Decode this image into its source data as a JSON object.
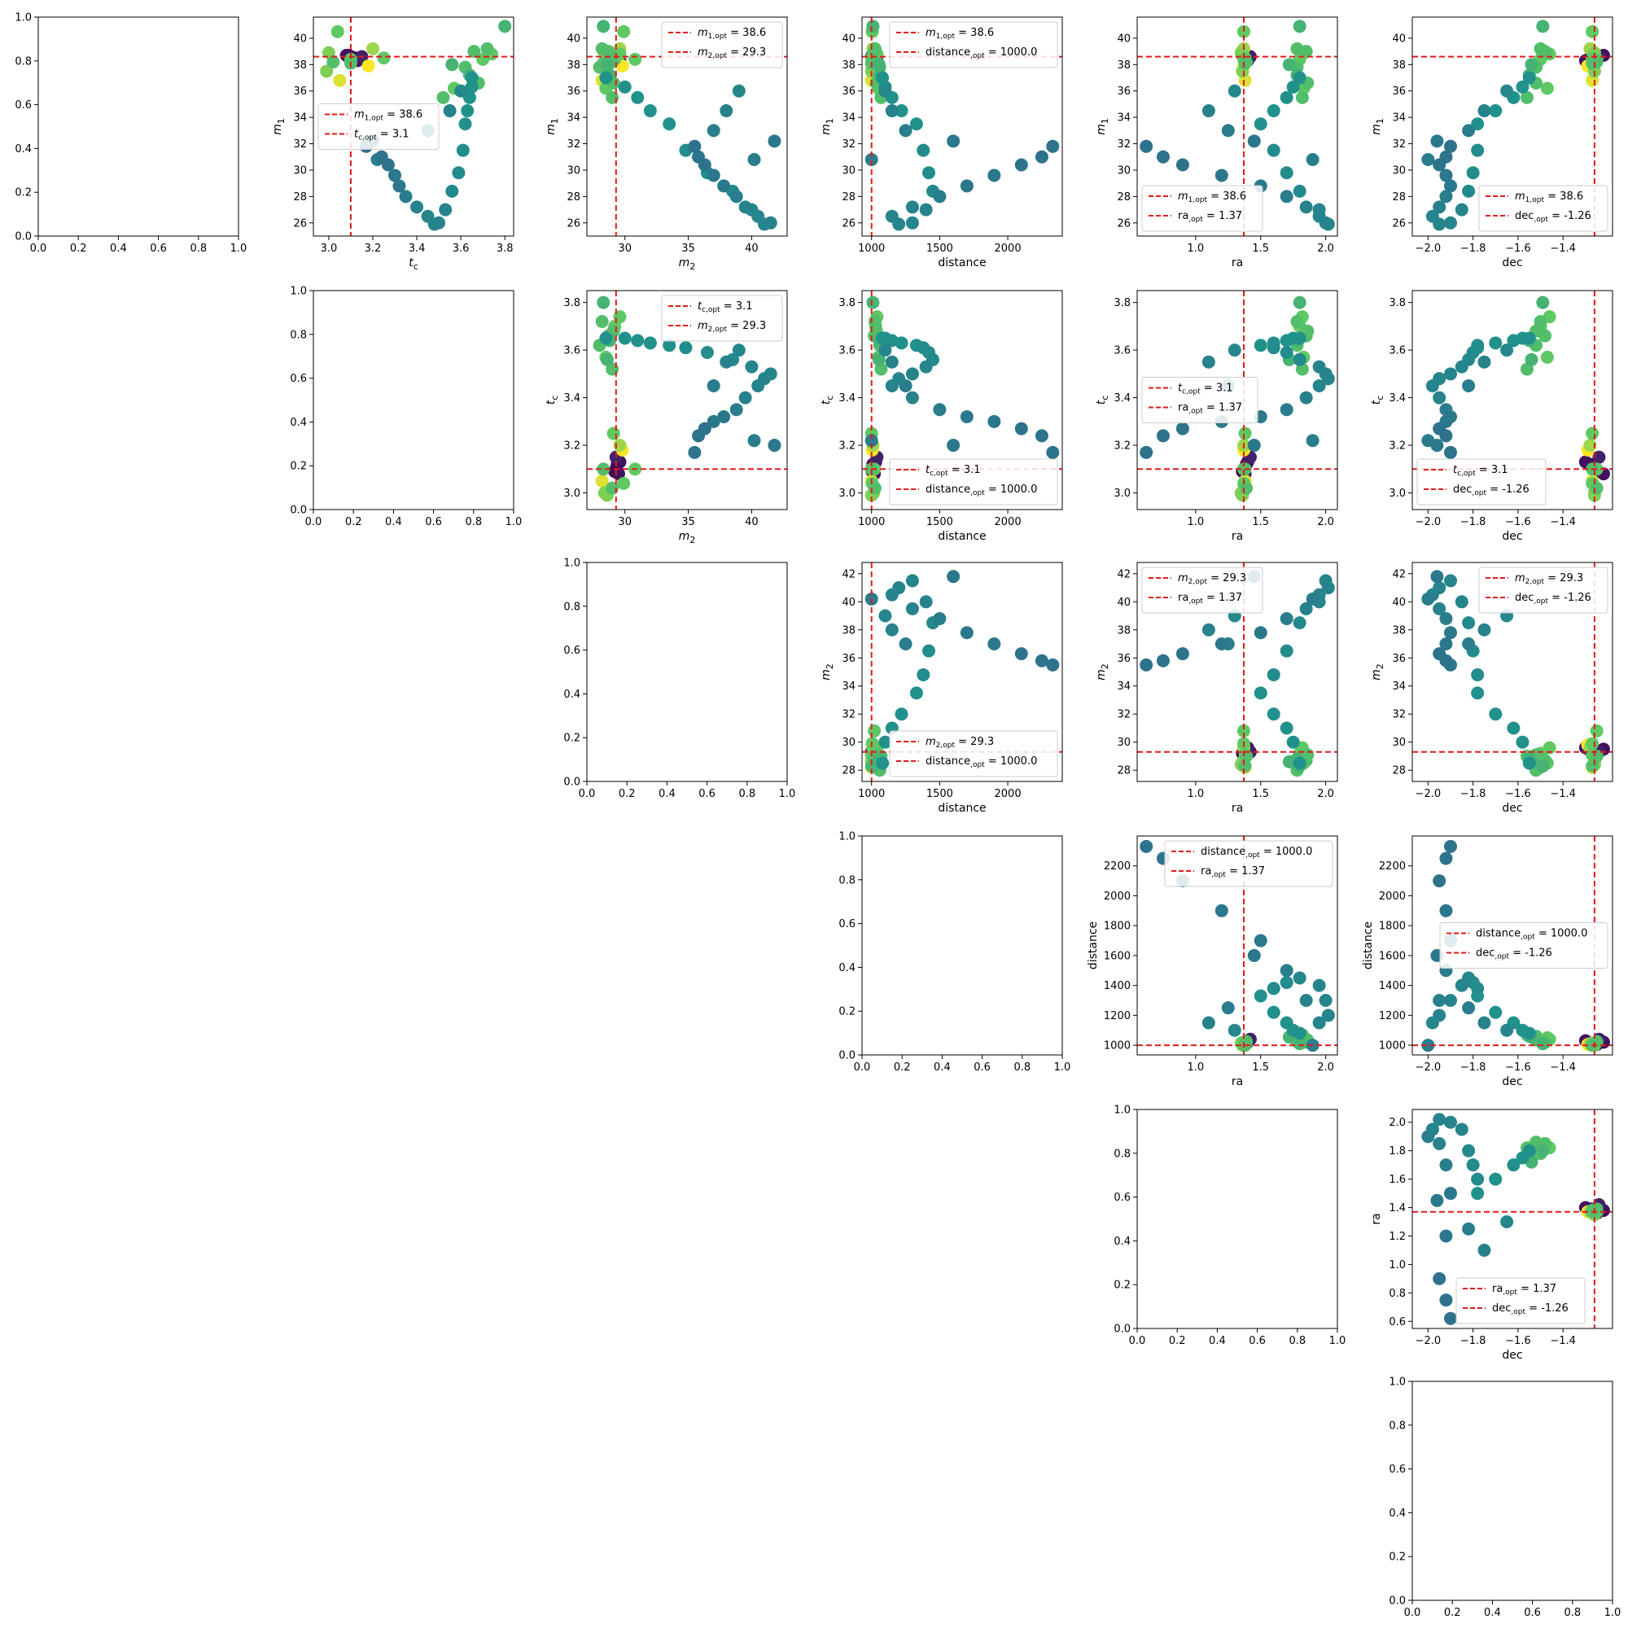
{
  "chart_data": {
    "type": "scatter",
    "parameters": [
      {
        "key": "m1",
        "sym": "m",
        "sub": "1",
        "opt": 38.6,
        "opt_label": "38.6"
      },
      {
        "key": "tc",
        "sym": "t",
        "sub": "c",
        "opt": 3.1,
        "opt_label": "3.1"
      },
      {
        "key": "m2",
        "sym": "m",
        "sub": "2",
        "opt": 29.3,
        "opt_label": "29.3"
      },
      {
        "key": "distance",
        "sym": "distance",
        "sub": "",
        "opt": 1000.0,
        "opt_label": "1000.0"
      },
      {
        "key": "ra",
        "sym": "ra",
        "sub": "",
        "opt": 1.37,
        "opt_label": "1.37"
      },
      {
        "key": "dec",
        "sym": "dec",
        "sub": "",
        "opt": -1.26,
        "opt_label": "-1.26"
      }
    ],
    "opt_subscript": "opt",
    "empty_axis_ticks": [
      "0.0",
      "0.2",
      "0.4",
      "0.6",
      "0.8",
      "1.0"
    ],
    "legend_line_color": "#e31a1c",
    "colormap": [
      "#440154",
      "#3b528b",
      "#21918c",
      "#5ec962",
      "#fde725"
    ],
    "panels": [
      {
        "row": 0,
        "col": 0,
        "type": "empty"
      },
      {
        "row": 0,
        "col": 1,
        "x": "tc",
        "y": "m1",
        "xlim": [
          2.93,
          3.84
        ],
        "ylim": [
          25.0,
          41.6
        ],
        "xticks": [
          3.0,
          3.2,
          3.4,
          3.6,
          3.8
        ],
        "yticks": [
          26,
          28,
          30,
          32,
          34,
          36,
          38,
          40
        ],
        "legend": "center-left"
      },
      {
        "row": 0,
        "col": 2,
        "x": "m2",
        "y": "m1",
        "xlim": [
          27.0,
          42.8
        ],
        "ylim": [
          25.0,
          41.6
        ],
        "xticks": [
          30,
          35,
          40
        ],
        "yticks": [
          26,
          28,
          30,
          32,
          34,
          36,
          38,
          40
        ],
        "legend": "top-right"
      },
      {
        "row": 0,
        "col": 3,
        "x": "distance",
        "y": "m1",
        "xlim": [
          930,
          2400
        ],
        "ylim": [
          25.0,
          41.6
        ],
        "xticks": [
          1000,
          1500,
          2000
        ],
        "yticks": [
          26,
          28,
          30,
          32,
          34,
          36,
          38,
          40
        ],
        "legend": "top-right"
      },
      {
        "row": 0,
        "col": 4,
        "x": "ra",
        "y": "m1",
        "xlim": [
          0.55,
          2.09
        ],
        "ylim": [
          25.0,
          41.6
        ],
        "xticks": [
          1.0,
          1.5,
          2.0
        ],
        "yticks": [
          26,
          28,
          30,
          32,
          34,
          36,
          38,
          40
        ],
        "legend": "bottom-left"
      },
      {
        "row": 0,
        "col": 5,
        "x": "dec",
        "y": "m1",
        "xlim": [
          -2.07,
          -1.18
        ],
        "ylim": [
          25.0,
          41.6
        ],
        "xticks": [
          -2.0,
          -1.8,
          -1.6,
          -1.4
        ],
        "yticks": [
          26,
          28,
          30,
          32,
          34,
          36,
          38,
          40
        ],
        "legend": "bottom-right"
      },
      {
        "row": 1,
        "col": 1,
        "type": "empty"
      },
      {
        "row": 1,
        "col": 2,
        "x": "m2",
        "y": "tc",
        "xlim": [
          27.0,
          42.8
        ],
        "ylim": [
          2.93,
          3.85
        ],
        "xticks": [
          30,
          35,
          40
        ],
        "yticks": [
          3.0,
          3.2,
          3.4,
          3.6,
          3.8
        ],
        "legend": "top-right"
      },
      {
        "row": 1,
        "col": 3,
        "x": "distance",
        "y": "tc",
        "xlim": [
          930,
          2400
        ],
        "ylim": [
          2.93,
          3.85
        ],
        "xticks": [
          1000,
          1500,
          2000
        ],
        "yticks": [
          3.0,
          3.2,
          3.4,
          3.6,
          3.8
        ],
        "legend": "bottom-right"
      },
      {
        "row": 1,
        "col": 4,
        "x": "ra",
        "y": "tc",
        "xlim": [
          0.55,
          2.09
        ],
        "ylim": [
          2.93,
          3.85
        ],
        "xticks": [
          1.0,
          1.5,
          2.0
        ],
        "yticks": [
          3.0,
          3.2,
          3.4,
          3.6,
          3.8
        ],
        "legend": "center-left"
      },
      {
        "row": 1,
        "col": 5,
        "x": "dec",
        "y": "tc",
        "xlim": [
          -2.07,
          -1.18
        ],
        "ylim": [
          2.93,
          3.85
        ],
        "xticks": [
          -2.0,
          -1.8,
          -1.6,
          -1.4
        ],
        "yticks": [
          3.0,
          3.2,
          3.4,
          3.6,
          3.8
        ],
        "legend": "bottom-left"
      },
      {
        "row": 2,
        "col": 2,
        "type": "empty"
      },
      {
        "row": 2,
        "col": 3,
        "x": "distance",
        "y": "m2",
        "xlim": [
          930,
          2400
        ],
        "ylim": [
          27.2,
          42.8
        ],
        "xticks": [
          1000,
          1500,
          2000
        ],
        "yticks": [
          28,
          30,
          32,
          34,
          36,
          38,
          40,
          42
        ],
        "legend": "bottom-right"
      },
      {
        "row": 2,
        "col": 4,
        "x": "ra",
        "y": "m2",
        "xlim": [
          0.55,
          2.09
        ],
        "ylim": [
          27.2,
          42.8
        ],
        "xticks": [
          1.0,
          1.5,
          2.0
        ],
        "yticks": [
          28,
          30,
          32,
          34,
          36,
          38,
          40,
          42
        ],
        "legend": "top-left"
      },
      {
        "row": 2,
        "col": 5,
        "x": "dec",
        "y": "m2",
        "xlim": [
          -2.07,
          -1.18
        ],
        "ylim": [
          27.2,
          42.8
        ],
        "xticks": [
          -2.0,
          -1.8,
          -1.6,
          -1.4
        ],
        "yticks": [
          28,
          30,
          32,
          34,
          36,
          38,
          40,
          42
        ],
        "legend": "top-right"
      },
      {
        "row": 3,
        "col": 3,
        "type": "empty"
      },
      {
        "row": 3,
        "col": 4,
        "x": "ra",
        "y": "distance",
        "xlim": [
          0.55,
          2.09
        ],
        "ylim": [
          935,
          2400
        ],
        "xticks": [
          1.0,
          1.5,
          2.0
        ],
        "yticks": [
          1000,
          1200,
          1400,
          1600,
          1800,
          2000,
          2200
        ],
        "legend": "top-right"
      },
      {
        "row": 3,
        "col": 5,
        "x": "dec",
        "y": "distance",
        "xlim": [
          -2.07,
          -1.18
        ],
        "ylim": [
          935,
          2400
        ],
        "xticks": [
          -2.0,
          -1.8,
          -1.6,
          -1.4
        ],
        "yticks": [
          1000,
          1200,
          1400,
          1600,
          1800,
          2000,
          2200
        ],
        "legend": "center-right"
      },
      {
        "row": 4,
        "col": 4,
        "type": "empty"
      },
      {
        "row": 4,
        "col": 5,
        "x": "dec",
        "y": "ra",
        "xlim": [
          -2.07,
          -1.18
        ],
        "ylim": [
          0.55,
          2.09
        ],
        "xticks": [
          -2.0,
          -1.8,
          -1.6,
          -1.4
        ],
        "yticks": [
          0.6,
          0.8,
          1.0,
          1.2,
          1.4,
          1.6,
          1.8,
          2.0
        ],
        "legend": "bottom-center"
      },
      {
        "row": 5,
        "col": 5,
        "type": "empty"
      }
    ],
    "samples": [
      {
        "m1": 38.6,
        "tc": 3.1,
        "m2": 29.3,
        "distance": 1000,
        "ra": 1.37,
        "dec": -1.26,
        "c": 0.0
      },
      {
        "m1": 38.5,
        "tc": 3.12,
        "m2": 29.4,
        "distance": 1010,
        "ra": 1.39,
        "dec": -1.28,
        "c": 0.0
      },
      {
        "m1": 38.7,
        "tc": 3.09,
        "m2": 29.2,
        "distance": 1005,
        "ra": 1.36,
        "dec": -1.25,
        "c": 0.0
      },
      {
        "m1": 38.3,
        "tc": 3.13,
        "m2": 29.6,
        "distance": 1030,
        "ra": 1.4,
        "dec": -1.3,
        "c": 0.05
      },
      {
        "m1": 38.7,
        "tc": 3.08,
        "m2": 29.5,
        "distance": 1020,
        "ra": 1.38,
        "dec": -1.22,
        "c": 0.05
      },
      {
        "m1": 38.6,
        "tc": 3.15,
        "m2": 29.3,
        "distance": 1040,
        "ra": 1.42,
        "dec": -1.24,
        "c": 0.1
      },
      {
        "m1": 38.5,
        "tc": 3.25,
        "m2": 29.1,
        "distance": 1000,
        "ra": 1.38,
        "dec": -1.27,
        "c": 0.75
      },
      {
        "m1": 38.9,
        "tc": 3.0,
        "m2": 28.4,
        "distance": 1015,
        "ra": 1.35,
        "dec": -1.26,
        "c": 0.8
      },
      {
        "m1": 37.9,
        "tc": 3.18,
        "m2": 29.8,
        "distance": 1005,
        "ra": 1.37,
        "dec": -1.29,
        "c": 1.0
      },
      {
        "m1": 36.8,
        "tc": 3.05,
        "m2": 28.2,
        "distance": 1000,
        "ra": 1.38,
        "dec": -1.27,
        "c": 0.95
      },
      {
        "m1": 39.2,
        "tc": 3.2,
        "m2": 29.6,
        "distance": 1010,
        "ra": 1.37,
        "dec": -1.28,
        "c": 0.85
      },
      {
        "m1": 38.2,
        "tc": 3.02,
        "m2": 29.0,
        "distance": 1025,
        "ra": 1.39,
        "dec": -1.25,
        "c": 0.7
      },
      {
        "m1": 40.5,
        "tc": 3.04,
        "m2": 29.9,
        "distance": 1005,
        "ra": 1.37,
        "dec": -1.27,
        "c": 0.75
      },
      {
        "m1": 37.5,
        "tc": 2.99,
        "m2": 28.6,
        "distance": 1000,
        "ra": 1.36,
        "dec": -1.26,
        "c": 0.8
      },
      {
        "m1": 38.4,
        "tc": 3.1,
        "m2": 30.8,
        "distance": 1020,
        "ra": 1.37,
        "dec": -1.25,
        "c": 0.75
      },
      {
        "m1": 38.1,
        "tc": 3.1,
        "m2": 28.3,
        "distance": 1000,
        "ra": 1.38,
        "dec": -1.27,
        "c": 0.7
      },
      {
        "m1": 36.2,
        "tc": 3.57,
        "m2": 28.5,
        "distance": 1050,
        "ra": 1.83,
        "dec": -1.47,
        "c": 0.75
      },
      {
        "m1": 37.8,
        "tc": 3.62,
        "m2": 28.0,
        "distance": 1060,
        "ra": 1.78,
        "dec": -1.52,
        "c": 0.7
      },
      {
        "m1": 38.4,
        "tc": 3.7,
        "m2": 29.2,
        "distance": 1030,
        "ra": 1.8,
        "dec": -1.5,
        "c": 0.75
      },
      {
        "m1": 39.0,
        "tc": 3.66,
        "m2": 28.7,
        "distance": 1020,
        "ra": 1.85,
        "dec": -1.48,
        "c": 0.7
      },
      {
        "m1": 37.2,
        "tc": 3.64,
        "m2": 28.8,
        "distance": 1060,
        "ra": 1.78,
        "dec": -1.55,
        "c": 0.65
      },
      {
        "m1": 38.8,
        "tc": 3.74,
        "m2": 29.6,
        "distance": 1040,
        "ra": 1.82,
        "dec": -1.46,
        "c": 0.75
      },
      {
        "m1": 40.9,
        "tc": 3.8,
        "m2": 28.3,
        "distance": 1010,
        "ra": 1.8,
        "dec": -1.49,
        "c": 0.65
      },
      {
        "m1": 35.5,
        "tc": 3.52,
        "m2": 29.0,
        "distance": 1070,
        "ra": 1.82,
        "dec": -1.56,
        "c": 0.7
      },
      {
        "m1": 39.2,
        "tc": 3.72,
        "m2": 28.2,
        "distance": 1025,
        "ra": 1.78,
        "dec": -1.5,
        "c": 0.7
      },
      {
        "m1": 38.0,
        "tc": 3.56,
        "m2": 28.6,
        "distance": 1055,
        "ra": 1.72,
        "dec": -1.54,
        "c": 0.65
      },
      {
        "m1": 36.6,
        "tc": 3.68,
        "m2": 29.1,
        "distance": 1035,
        "ra": 1.86,
        "dec": -1.52,
        "c": 0.7
      },
      {
        "m1": 37.0,
        "tc": 3.65,
        "m2": 28.5,
        "distance": 1080,
        "ra": 1.8,
        "dec": -1.55,
        "c": 0.5
      },
      {
        "m1": 36.3,
        "tc": 3.65,
        "m2": 30.0,
        "distance": 1100,
        "ra": 1.75,
        "dec": -1.58,
        "c": 0.5
      },
      {
        "m1": 35.5,
        "tc": 3.64,
        "m2": 31.0,
        "distance": 1150,
        "ra": 1.7,
        "dec": -1.62,
        "c": 0.5
      },
      {
        "m1": 34.5,
        "tc": 3.63,
        "m2": 32.0,
        "distance": 1220,
        "ra": 1.6,
        "dec": -1.7,
        "c": 0.5
      },
      {
        "m1": 33.5,
        "tc": 3.62,
        "m2": 33.5,
        "distance": 1330,
        "ra": 1.5,
        "dec": -1.78,
        "c": 0.5
      },
      {
        "m1": 31.5,
        "tc": 3.61,
        "m2": 34.8,
        "distance": 1380,
        "ra": 1.6,
        "dec": -1.78,
        "c": 0.48
      },
      {
        "m1": 29.8,
        "tc": 3.59,
        "m2": 36.5,
        "distance": 1420,
        "ra": 1.7,
        "dec": -1.8,
        "c": 0.48
      },
      {
        "m1": 28.4,
        "tc": 3.56,
        "m2": 38.5,
        "distance": 1450,
        "ra": 1.8,
        "dec": -1.82,
        "c": 0.47
      },
      {
        "m1": 27.0,
        "tc": 3.53,
        "m2": 40.0,
        "distance": 1400,
        "ra": 1.95,
        "dec": -1.85,
        "c": 0.45
      },
      {
        "m1": 26.0,
        "tc": 3.5,
        "m2": 41.5,
        "distance": 1300,
        "ra": 2.0,
        "dec": -1.9,
        "c": 0.45
      },
      {
        "m1": 25.9,
        "tc": 3.48,
        "m2": 41.0,
        "distance": 1200,
        "ra": 2.02,
        "dec": -1.95,
        "c": 0.45
      },
      {
        "m1": 26.5,
        "tc": 3.45,
        "m2": 40.5,
        "distance": 1150,
        "ra": 1.95,
        "dec": -1.98,
        "c": 0.45
      },
      {
        "m1": 27.2,
        "tc": 3.4,
        "m2": 39.5,
        "distance": 1300,
        "ra": 1.85,
        "dec": -1.95,
        "c": 0.44
      },
      {
        "m1": 28.0,
        "tc": 3.35,
        "m2": 38.8,
        "distance": 1500,
        "ra": 1.7,
        "dec": -1.92,
        "c": 0.42
      },
      {
        "m1": 28.8,
        "tc": 3.32,
        "m2": 37.8,
        "distance": 1700,
        "ra": 1.5,
        "dec": -1.9,
        "c": 0.4
      },
      {
        "m1": 29.6,
        "tc": 3.3,
        "m2": 37.0,
        "distance": 1900,
        "ra": 1.2,
        "dec": -1.92,
        "c": 0.4
      },
      {
        "m1": 30.4,
        "tc": 3.27,
        "m2": 36.3,
        "distance": 2100,
        "ra": 0.9,
        "dec": -1.95,
        "c": 0.38
      },
      {
        "m1": 31.0,
        "tc": 3.24,
        "m2": 35.8,
        "distance": 2250,
        "ra": 0.75,
        "dec": -1.92,
        "c": 0.38
      },
      {
        "m1": 31.8,
        "tc": 3.17,
        "m2": 35.5,
        "distance": 2330,
        "ra": 0.62,
        "dec": -1.9,
        "c": 0.38
      },
      {
        "m1": 33.0,
        "tc": 3.45,
        "m2": 37.0,
        "distance": 1250,
        "ra": 1.25,
        "dec": -1.82,
        "c": 0.42
      },
      {
        "m1": 34.5,
        "tc": 3.55,
        "m2": 38.0,
        "distance": 1150,
        "ra": 1.1,
        "dec": -1.75,
        "c": 0.44
      },
      {
        "m1": 36.0,
        "tc": 3.6,
        "m2": 39.0,
        "distance": 1100,
        "ra": 1.3,
        "dec": -1.65,
        "c": 0.46
      },
      {
        "m1": 32.2,
        "tc": 3.2,
        "m2": 41.8,
        "distance": 1600,
        "ra": 1.45,
        "dec": -1.96,
        "c": 0.4
      },
      {
        "m1": 30.8,
        "tc": 3.22,
        "m2": 40.2,
        "distance": 1000,
        "ra": 1.9,
        "dec": -2.0,
        "c": 0.42
      }
    ]
  }
}
